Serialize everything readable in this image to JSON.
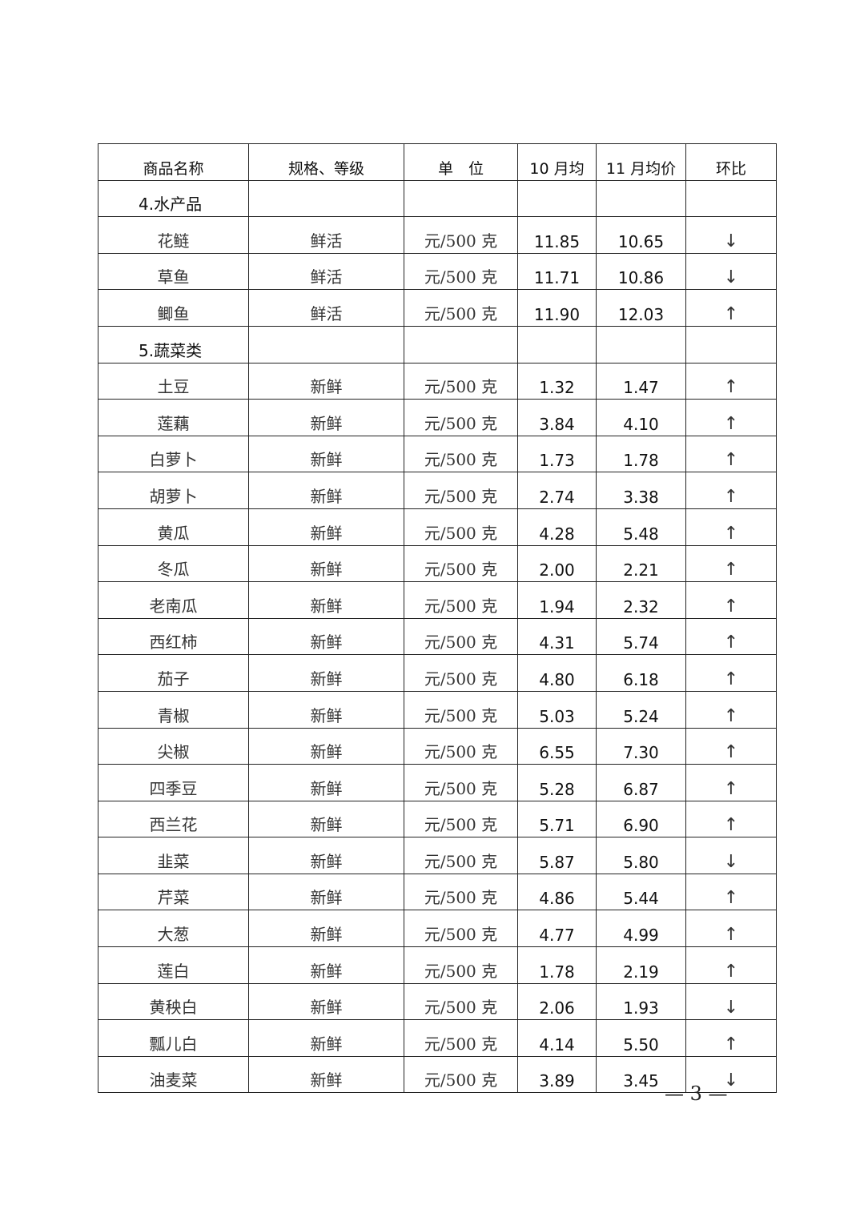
{
  "headers": [
    "商品名称",
    "规格、等级",
    "单　位",
    "10 月均",
    "11 月均价",
    "环比"
  ],
  "rows": [
    {
      "category": "4.水产品"
    },
    {
      "name": "花鲢",
      "spec": "鲜活",
      "unit": "元/500 克",
      "oct": "11.85",
      "nov": "10.65",
      "trend": "↓"
    },
    {
      "name": "草鱼",
      "spec": "鲜活",
      "unit": "元/500 克",
      "oct": "11.71",
      "nov": "10.86",
      "trend": "↓"
    },
    {
      "name": "鲫鱼",
      "spec": "鲜活",
      "unit": "元/500 克",
      "oct": "11.90",
      "nov": "12.03",
      "trend": "↑"
    },
    {
      "category": "5.蔬菜类"
    },
    {
      "name": "土豆",
      "spec": "新鲜",
      "unit": "元/500 克",
      "oct": "1.32",
      "nov": "1.47",
      "trend": "↑"
    },
    {
      "name": "莲藕",
      "spec": "新鲜",
      "unit": "元/500 克",
      "oct": "3.84",
      "nov": "4.10",
      "trend": "↑"
    },
    {
      "name": "白萝卜",
      "spec": "新鲜",
      "unit": "元/500 克",
      "oct": "1.73",
      "nov": "1.78",
      "trend": "↑"
    },
    {
      "name": "胡萝卜",
      "spec": "新鲜",
      "unit": "元/500 克",
      "oct": "2.74",
      "nov": "3.38",
      "trend": "↑"
    },
    {
      "name": "黄瓜",
      "spec": "新鲜",
      "unit": "元/500 克",
      "oct": "4.28",
      "nov": "5.48",
      "trend": "↑"
    },
    {
      "name": "冬瓜",
      "spec": "新鲜",
      "unit": "元/500 克",
      "oct": "2.00",
      "nov": "2.21",
      "trend": "↑"
    },
    {
      "name": "老南瓜",
      "spec": "新鲜",
      "unit": "元/500 克",
      "oct": "1.94",
      "nov": "2.32",
      "trend": "↑"
    },
    {
      "name": "西红柿",
      "spec": "新鲜",
      "unit": "元/500 克",
      "oct": "4.31",
      "nov": "5.74",
      "trend": "↑"
    },
    {
      "name": "茄子",
      "spec": "新鲜",
      "unit": "元/500 克",
      "oct": "4.80",
      "nov": "6.18",
      "trend": "↑"
    },
    {
      "name": "青椒",
      "spec": "新鲜",
      "unit": "元/500 克",
      "oct": "5.03",
      "nov": "5.24",
      "trend": "↑"
    },
    {
      "name": "尖椒",
      "spec": "新鲜",
      "unit": "元/500 克",
      "oct": "6.55",
      "nov": "7.30",
      "trend": "↑"
    },
    {
      "name": "四季豆",
      "spec": "新鲜",
      "unit": "元/500 克",
      "oct": "5.28",
      "nov": "6.87",
      "trend": "↑"
    },
    {
      "name": "西兰花",
      "spec": "新鲜",
      "unit": "元/500 克",
      "oct": "5.71",
      "nov": "6.90",
      "trend": "↑"
    },
    {
      "name": "韭菜",
      "spec": "新鲜",
      "unit": "元/500 克",
      "oct": "5.87",
      "nov": "5.80",
      "trend": "↓"
    },
    {
      "name": "芹菜",
      "spec": "新鲜",
      "unit": "元/500 克",
      "oct": "4.86",
      "nov": "5.44",
      "trend": "↑"
    },
    {
      "name": "大葱",
      "spec": "新鲜",
      "unit": "元/500 克",
      "oct": "4.77",
      "nov": "4.99",
      "trend": "↑"
    },
    {
      "name": "莲白",
      "spec": "新鲜",
      "unit": "元/500 克",
      "oct": "1.78",
      "nov": "2.19",
      "trend": "↑"
    },
    {
      "name": "黄秧白",
      "spec": "新鲜",
      "unit": "元/500 克",
      "oct": "2.06",
      "nov": "1.93",
      "trend": "↓"
    },
    {
      "name": "瓢儿白",
      "spec": "新鲜",
      "unit": "元/500 克",
      "oct": "4.14",
      "nov": "5.50",
      "trend": "↑"
    },
    {
      "name": "油麦菜",
      "spec": "新鲜",
      "unit": "元/500 克",
      "oct": "3.89",
      "nov": "3.45",
      "trend": "↓"
    }
  ],
  "page_number": "— 3 —"
}
